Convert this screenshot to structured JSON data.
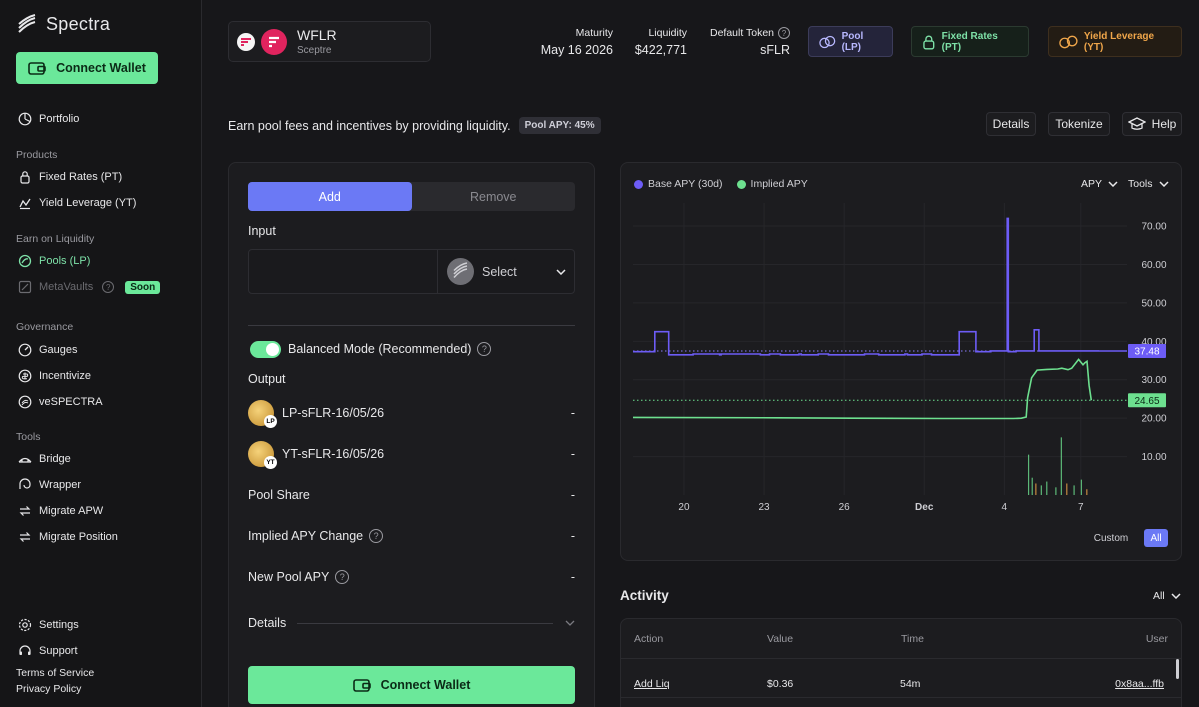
{
  "app": {
    "name": "Spectra"
  },
  "sidebar": {
    "connect_label": "Connect Wallet",
    "portfolio": "Portfolio",
    "sections": {
      "products": "Products",
      "earn": "Earn on Liquidity",
      "governance": "Governance",
      "tools": "Tools"
    },
    "items": {
      "fixed_rates": "Fixed Rates (PT)",
      "yield_leverage": "Yield Leverage (YT)",
      "pools": "Pools (LP)",
      "metavaults": "MetaVaults",
      "soon": "Soon",
      "gauges": "Gauges",
      "incentivize": "Incentivize",
      "vespectra": "veSPECTRA",
      "bridge": "Bridge",
      "wrapper": "Wrapper",
      "migrate_apw": "Migrate APW",
      "migrate_position": "Migrate Position",
      "settings": "Settings",
      "support": "Support"
    },
    "footer": {
      "terms": "Terms of Service",
      "privacy": "Privacy Policy"
    }
  },
  "header": {
    "asset_name": "WFLR",
    "asset_protocol": "Sceptre",
    "maturity_label": "Maturity",
    "maturity_value": "May 16 2026",
    "liquidity_label": "Liquidity",
    "liquidity_value": "$422,771",
    "default_token_label": "Default Token",
    "default_token_value": "sFLR",
    "modes": {
      "pool": "Pool (LP)",
      "pt": "Fixed Rates (PT)",
      "yt": "Yield Leverage (YT)"
    }
  },
  "subheader": {
    "text": "Earn pool fees and incentives by providing liquidity.",
    "apy_badge": "Pool APY: 45%",
    "buttons": {
      "details": "Details",
      "tokenize": "Tokenize",
      "help": "Help"
    }
  },
  "form": {
    "tab_add": "Add",
    "tab_remove": "Remove",
    "input_label": "Input",
    "amount_value": "",
    "select_label": "Select",
    "balanced_mode": "Balanced Mode (Recommended)",
    "output_label": "Output",
    "outputs": [
      {
        "token": "LP-sFLR-16/05/26",
        "badge": "LP",
        "value": "-"
      },
      {
        "token": "YT-sFLR-16/05/26",
        "badge": "YT",
        "value": "-"
      }
    ],
    "pool_share": {
      "label": "Pool Share",
      "value": "-"
    },
    "implied_apy_change": {
      "label": "Implied APY Change",
      "value": "-"
    },
    "new_pool_apy": {
      "label": "New Pool APY",
      "value": "-"
    },
    "details_label": "Details",
    "connect_label": "Connect Wallet"
  },
  "chart_data": {
    "type": "line",
    "legend": [
      "Base APY (30d)",
      "Implied APY"
    ],
    "x_ticks": [
      "20",
      "23",
      "26",
      "Dec",
      "4",
      "7"
    ],
    "y_ticks": [
      "70.00",
      "60.00",
      "50.00",
      "40.00",
      "30.00",
      "20.00",
      "10.00"
    ],
    "ylim": [
      0,
      76
    ],
    "grid": true,
    "y_axis_side": "right",
    "series": [
      {
        "name": "Base APY (30d)",
        "color": "#6d5cf6",
        "x": [
          0,
          6,
          6,
          9.8,
          9.8,
          16.5,
          16.5,
          23.8,
          23.8,
          24.2,
          24.2,
          35,
          35,
          37.5,
          37.5,
          40.5,
          40.5,
          45.6,
          45.6,
          46.2,
          46.2,
          50.9,
          50.9,
          53.7,
          53.7,
          63.6,
          63.6,
          67.5,
          67.5,
          74.7,
          74.7,
          75.4,
          75.4,
          79.4,
          79.4,
          82,
          82,
          89.6,
          89.6,
          94.2,
          94.2,
          98.3,
          98.3,
          102.8,
          102.8,
          103.1,
          103.1,
          105.2,
          105.2,
          110.2,
          110.2,
          111.5,
          111.5,
          118.4,
          118.4,
          127.8,
          127.8,
          134.4,
          134.4,
          135.7
        ],
        "y": [
          37.3,
          37.3,
          42.5,
          42.5,
          36.5,
          36.5,
          36.7,
          36.7,
          36.5,
          36.5,
          36.7,
          36.7,
          36.5,
          36.5,
          36.7,
          36.7,
          36.5,
          36.5,
          36.7,
          36.7,
          36.5,
          36.5,
          36.7,
          36.7,
          36.5,
          36.5,
          36.7,
          36.7,
          36.5,
          36.5,
          36.7,
          36.7,
          36.5,
          36.5,
          36.7,
          36.7,
          36.5,
          36.5,
          42.5,
          42.5,
          37.3,
          37.3,
          37.5,
          37.5,
          72.0,
          72.0,
          37.3,
          37.3,
          37.5,
          37.5,
          43.0,
          43.0,
          37.5,
          37.5,
          37.5,
          37.5,
          37.48,
          37.48,
          37.48,
          37.48
        ]
      },
      {
        "name": "Implied APY",
        "color": "#6de08f",
        "x": [
          0,
          40,
          60,
          85,
          104.5,
          106.7,
          108,
          108.4,
          109.5,
          111,
          113.7,
          116.7,
          117.8,
          119.5,
          120.5,
          122.4,
          123.6,
          124.1,
          124.7,
          125.3,
          125.9
        ],
        "y": [
          20.2,
          20.1,
          20.0,
          19.9,
          19.9,
          20.0,
          20.3,
          25.3,
          30.5,
          32.5,
          32.7,
          32.8,
          33.0,
          32.6,
          33.0,
          35.3,
          33.9,
          34.4,
          34.8,
          28.5,
          24.65
        ]
      }
    ],
    "current_values": {
      "base": "37.48",
      "implied": "24.65"
    },
    "metric_select": "APY",
    "tools_label": "Tools",
    "range_buttons": [
      "Custom",
      "All"
    ],
    "active_range": "All"
  },
  "activity": {
    "title": "Activity",
    "filter": "All",
    "columns": [
      "Action",
      "Value",
      "Time",
      "User"
    ],
    "rows": [
      {
        "action": "Add Liq",
        "value": "$0.36",
        "time": "54m",
        "user": "0x8aa...ffb"
      }
    ]
  },
  "colors": {
    "accent_green": "#6be89a",
    "accent_purple": "#6b79f5",
    "accent_orange": "#f0a64a",
    "background": "#17171a"
  }
}
